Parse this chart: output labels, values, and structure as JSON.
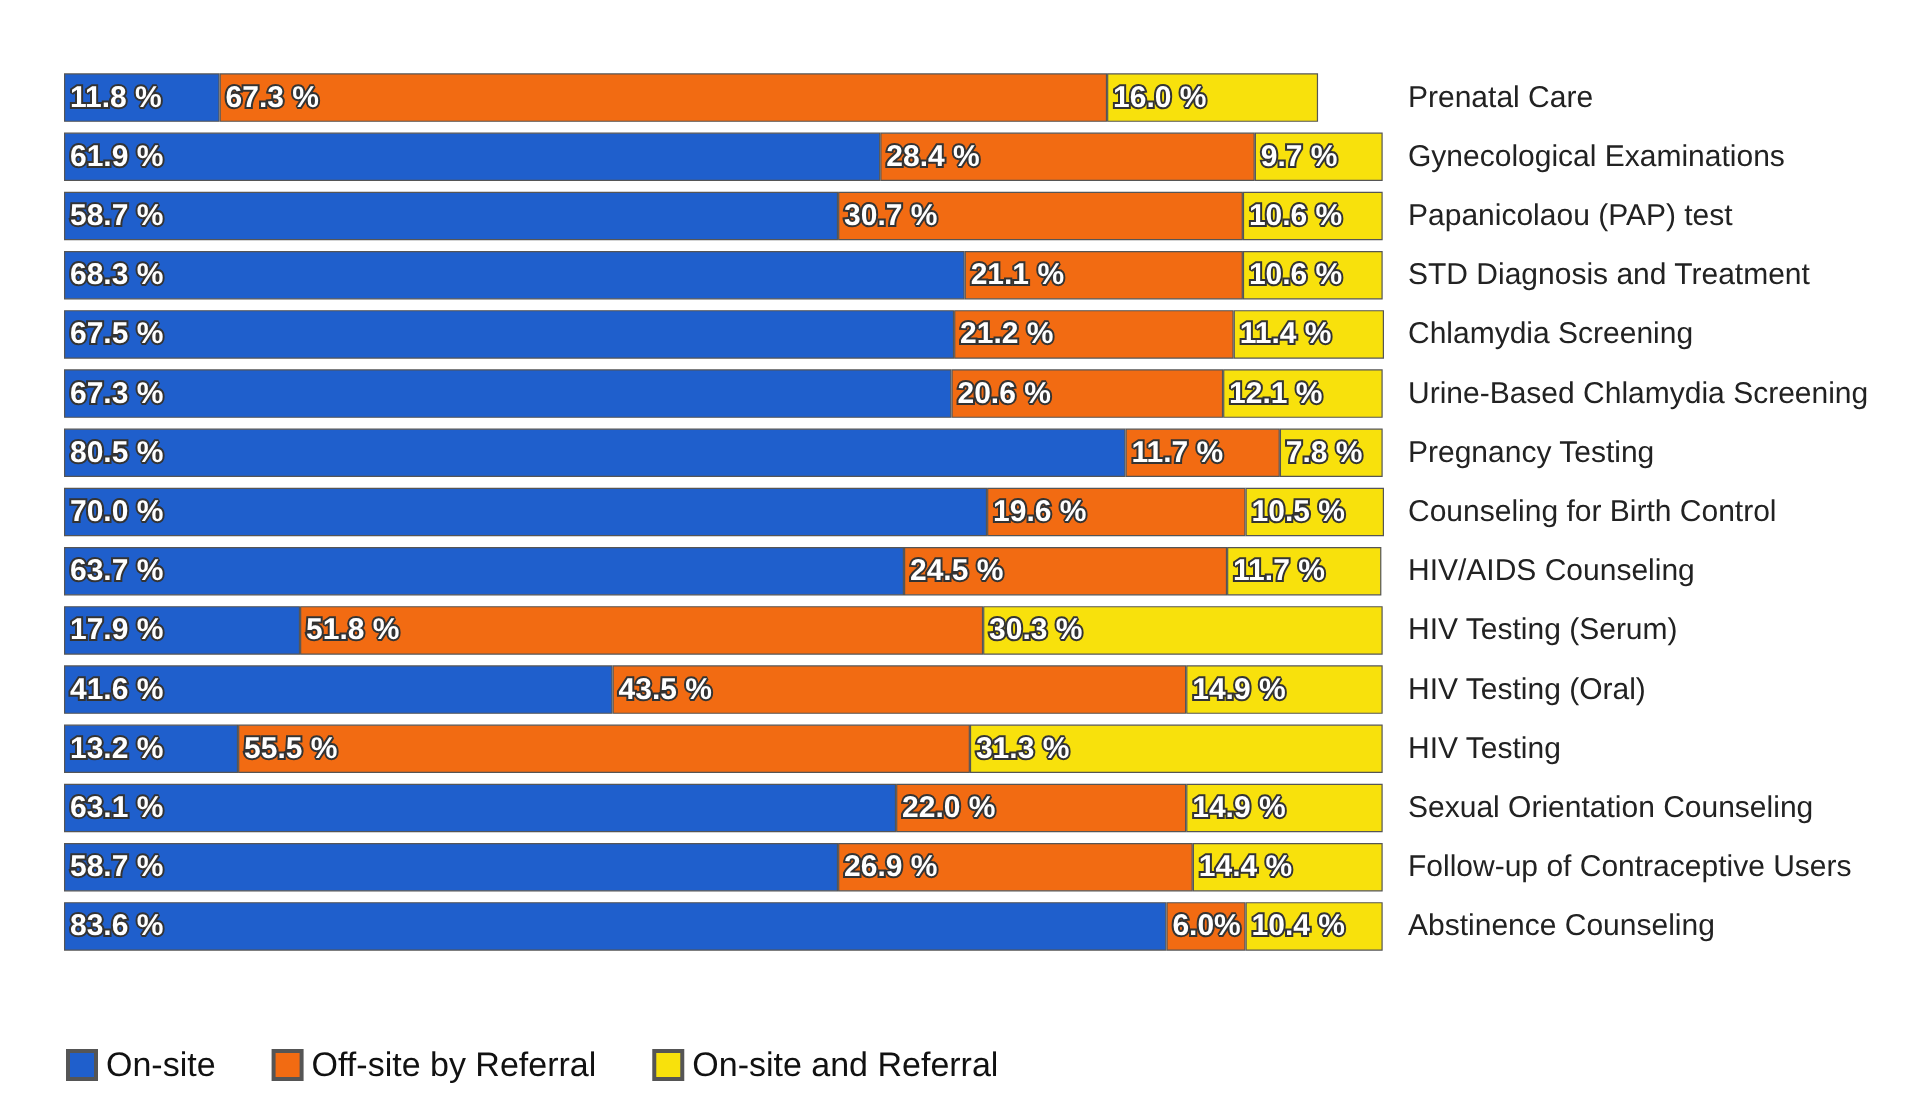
{
  "chart_data": {
    "type": "bar",
    "orientation": "horizontal",
    "stacked": true,
    "legend": "bottom left",
    "categories": [
      "Prenatal Care",
      "Gynecological Examinations",
      "Papanicolaou (PAP) test",
      "STD Diagnosis and Treatment",
      "Chlamydia Screening",
      "Urine-Based Chlamydia Screening",
      "Pregnancy Testing",
      "Counseling for Birth Control",
      "HIV/AIDS Counseling",
      "HIV Testing (Serum)",
      "HIV Testing (Oral)",
      "HIV Testing",
      "Sexual Orientation Counseling",
      "Follow-up of Contraceptive Users",
      "Abstinence Counseling"
    ],
    "series": [
      {
        "name": "On-site",
        "color": "#1f5fcc",
        "values": [
          11.8,
          61.9,
          58.7,
          68.3,
          67.5,
          67.3,
          80.5,
          70.0,
          63.7,
          17.9,
          41.6,
          13.2,
          63.1,
          58.7,
          83.6
        ],
        "value_labels": [
          "11.8 %",
          "61.9 %",
          "58.7 %",
          "68.3 %",
          "67.5 %",
          "67.3 %",
          "80.5 %",
          "70.0 %",
          "63.7 %",
          "17.9 %",
          "41.6 %",
          "13.2 %",
          "63.1 %",
          "58.7 %",
          "83.6 %"
        ]
      },
      {
        "name": "Off-site by Referral",
        "color": "#f26b12",
        "values": [
          67.3,
          28.4,
          30.7,
          21.1,
          21.2,
          20.6,
          11.7,
          19.6,
          24.5,
          51.8,
          43.5,
          55.5,
          22.0,
          26.9,
          6.0
        ],
        "value_labels": [
          "67.3 %",
          "28.4 %",
          "30.7 %",
          "21.1 %",
          "21.2 %",
          "20.6 %",
          "11.7 %",
          "19.6 %",
          "24.5 %",
          "51.8 %",
          "43.5 %",
          "55.5 %",
          "22.0 %",
          "26.9 %",
          "6.0%"
        ]
      },
      {
        "name": "On-site and Referral",
        "color": "#f8e10c",
        "values": [
          16.0,
          9.7,
          10.6,
          10.6,
          11.4,
          12.1,
          7.8,
          10.5,
          11.7,
          30.3,
          14.9,
          31.3,
          14.9,
          14.4,
          10.4
        ],
        "value_labels": [
          "16.0 %",
          "9.7 %",
          "10.6 %",
          "10.6 %",
          "11.4 %",
          "12.1 %",
          "7.8 %",
          "10.5 %",
          "11.7 %",
          "30.3 %",
          "14.9 %",
          "31.3 %",
          "14.9 %",
          "14.4 %",
          "10.4 %"
        ]
      }
    ]
  }
}
